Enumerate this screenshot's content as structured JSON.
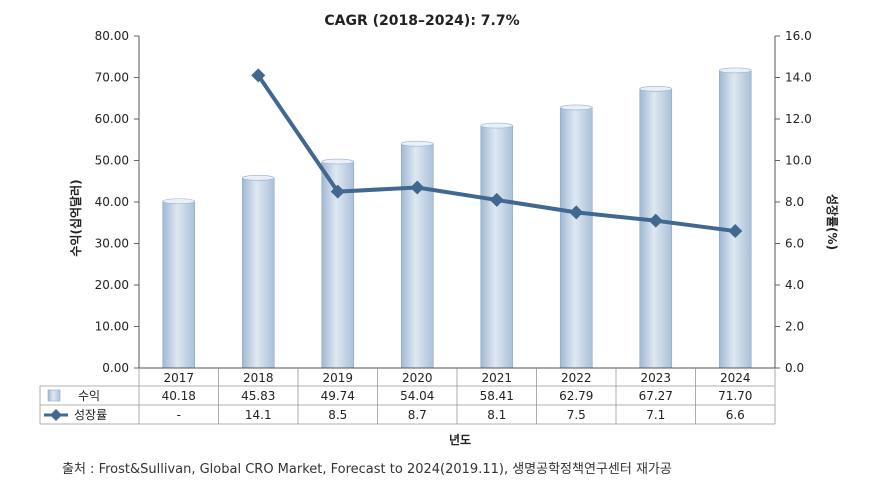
{
  "chart_data": {
    "type": "bar",
    "title": "CAGR (2018–2024): 7.7%",
    "xlabel": "년도",
    "ylabel": "수익(십억달러)",
    "y2label": "성장률(%)",
    "categories": [
      "2017",
      "2018",
      "2019",
      "2020",
      "2021",
      "2022",
      "2023",
      "2024"
    ],
    "ylim": [
      0,
      80
    ],
    "y2lim": [
      0,
      16
    ],
    "yticks": [
      "0.00",
      "10.00",
      "20.00",
      "30.00",
      "40.00",
      "50.00",
      "60.00",
      "70.00",
      "80.00"
    ],
    "y2ticks": [
      "0.0",
      "2.0",
      "4.0",
      "6.0",
      "8.0",
      "10.0",
      "12.0",
      "14.0",
      "16.0"
    ],
    "series": [
      {
        "name": "수익",
        "type": "bar",
        "axis": "left",
        "color": "#b9cde2",
        "values": [
          40.18,
          45.83,
          49.74,
          54.04,
          58.41,
          62.79,
          67.27,
          71.7
        ],
        "labels": [
          "40.18",
          "45.83",
          "49.74",
          "54.04",
          "58.41",
          "62.79",
          "67.27",
          "71.70"
        ]
      },
      {
        "name": "성장률",
        "type": "line",
        "axis": "right",
        "color": "#41688f",
        "values": [
          null,
          14.1,
          8.5,
          8.7,
          8.1,
          7.5,
          7.1,
          6.6
        ],
        "labels": [
          "-",
          "14.1",
          "8.5",
          "8.7",
          "8.1",
          "7.5",
          "7.1",
          "6.6"
        ]
      }
    ],
    "grid": false,
    "legend": "bottom-left data table"
  },
  "source": "출처 : Frost&Sullivan, Global CRO Market, Forecast to 2024(2019.11), 생명공학정책연구센터 재가공"
}
